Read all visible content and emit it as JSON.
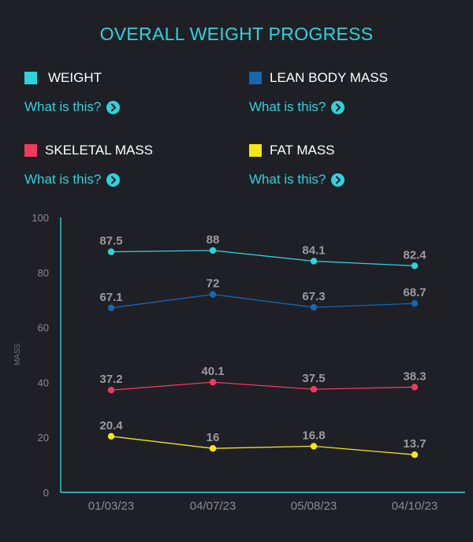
{
  "page": {
    "title": "OVERALL WEIGHT PROGRESS",
    "accent": "#2ed3dd",
    "help_text": "What is this?",
    "help_icon": "chevron-right-circle-icon"
  },
  "legend": [
    {
      "label": "WEIGHT",
      "color": "#2ed3dd"
    },
    {
      "label": "LEAN BODY MASS",
      "color": "#1567b2"
    },
    {
      "label": "SKELETAL MASS",
      "color": "#ef3a5d"
    },
    {
      "label": "FAT MASS",
      "color": "#f5e617"
    }
  ],
  "chart_data": {
    "type": "line",
    "categories": [
      "01/03/23",
      "04/07/23",
      "05/08/23",
      "04/10/23"
    ],
    "series": [
      {
        "name": "WEIGHT",
        "color": "#2ed3dd",
        "values": [
          87.5,
          88,
          84.1,
          82.4
        ]
      },
      {
        "name": "LEAN BODY MASS",
        "color": "#1567b2",
        "values": [
          67.1,
          72,
          67.3,
          68.7
        ]
      },
      {
        "name": "SKELETAL MASS",
        "color": "#ef3a5d",
        "values": [
          37.2,
          40.1,
          37.5,
          38.3
        ]
      },
      {
        "name": "FAT MASS",
        "color": "#f5e617",
        "values": [
          20.4,
          16,
          16.8,
          13.7
        ]
      }
    ],
    "ylabel": "MASS",
    "ylim": [
      0,
      100
    ],
    "yticks": [
      0,
      20,
      40,
      60,
      80,
      100
    ],
    "grid": false
  }
}
